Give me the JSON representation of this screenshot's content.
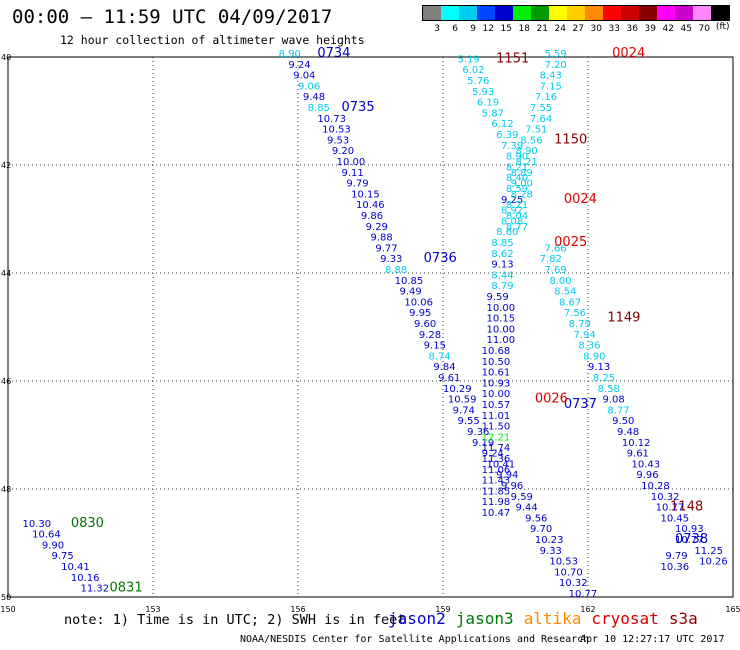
{
  "title": "00:00 – 11:59 UTC 04/09/2017",
  "subtitle": "12 hour collection of altimeter wave heights",
  "legend": {
    "unit": "(ft)",
    "colors": [
      "#808080",
      "#00ffff",
      "#00ccee",
      "#0044ff",
      "#0000cc",
      "#00ee00",
      "#009900",
      "#ffff00",
      "#ffcc00",
      "#ff8800",
      "#ff0000",
      "#cc0000",
      "#880000",
      "#ff00ff",
      "#cc00cc",
      "#ff88ff",
      "#000000"
    ],
    "labels": [
      "3",
      "6",
      "9",
      "12",
      "15",
      "18",
      "21",
      "24",
      "27",
      "30",
      "33",
      "36",
      "39",
      "42",
      "45",
      "70"
    ]
  },
  "axes": {
    "x_ticks": [
      "150",
      "153",
      "156",
      "159",
      "162",
      "165"
    ],
    "y_ticks": [
      "40",
      "42",
      "44",
      "46",
      "48",
      "50"
    ],
    "x_range": [
      150,
      165
    ],
    "y_range": [
      40,
      50
    ]
  },
  "footer": {
    "note": "note: 1) Time is in UTC; 2) SWH is in feet",
    "credit": "NOAA/NESDIS Center for Satellite Applications and Research",
    "stamp": "Apr 10 12:27:17 UTC 2017"
  },
  "satellites": [
    {
      "name": "jason2",
      "color": "#0000cc"
    },
    {
      "name": "jason3",
      "color": "#007700"
    },
    {
      "name": "altika",
      "color": "#ff8800"
    },
    {
      "name": "cryosat",
      "color": "#dd0000"
    },
    {
      "name": "s3a",
      "color": "#880000"
    }
  ],
  "chart_data": {
    "type": "scatter",
    "title": "",
    "xlabel": "",
    "ylabel": "",
    "grid": true,
    "tracks": [
      {
        "sat": "jason2",
        "pass_time": "0734",
        "time_pos": [
          156.4,
          40
        ],
        "points": [
          [
            155.6,
            40,
            "8.90",
            "#00ccee"
          ],
          [
            155.8,
            40.2,
            "9.24",
            "#0000cc"
          ],
          [
            155.9,
            40.4,
            "9.04",
            "#0000cc"
          ],
          [
            156.0,
            40.6,
            "9.06",
            "#00ccee"
          ],
          [
            156.1,
            40.8,
            "9.48",
            "#0000cc"
          ],
          [
            156.2,
            41.0,
            "8.85",
            "#00ccee"
          ],
          [
            156.4,
            41.2,
            "10.73",
            "#0000cc"
          ],
          [
            156.5,
            41.4,
            "10.53",
            "#0000cc"
          ],
          [
            156.6,
            41.6,
            "9.53",
            "#0000cc"
          ],
          [
            156.7,
            41.8,
            "9.20",
            "#0000cc"
          ],
          [
            156.8,
            42.0,
            "10.00",
            "#0000cc"
          ],
          [
            156.9,
            42.2,
            "9.11",
            "#0000cc"
          ],
          [
            157.0,
            42.4,
            "9.79",
            "#0000cc"
          ],
          [
            157.1,
            42.6,
            "10.15",
            "#0000cc"
          ],
          [
            157.2,
            42.8,
            "10.46",
            "#0000cc"
          ],
          [
            157.3,
            43.0,
            "9.86",
            "#0000cc"
          ],
          [
            157.4,
            43.2,
            "9.29",
            "#0000cc"
          ],
          [
            157.5,
            43.4,
            "9.88",
            "#0000cc"
          ],
          [
            157.6,
            43.6,
            "9.77",
            "#0000cc"
          ],
          [
            157.7,
            43.8,
            "9.33",
            "#0000cc"
          ],
          [
            157.8,
            44.0,
            "8.88",
            "#00ccee"
          ]
        ]
      },
      {
        "sat": "jason2",
        "pass_time": "0735",
        "time_pos": [
          156.9,
          41.0
        ],
        "points": []
      },
      {
        "sat": "jason2",
        "pass_time": "0736",
        "time_pos": [
          158.6,
          43.8
        ],
        "points": [
          [
            158.0,
            44.2,
            "10.85",
            "#0000cc"
          ],
          [
            158.1,
            44.4,
            "9.49",
            "#0000cc"
          ],
          [
            158.2,
            44.6,
            "10.06",
            "#0000cc"
          ],
          [
            158.3,
            44.8,
            "9.95",
            "#0000cc"
          ],
          [
            158.4,
            45.0,
            "9.60",
            "#0000cc"
          ],
          [
            158.5,
            45.2,
            "9.28",
            "#0000cc"
          ],
          [
            158.6,
            45.4,
            "9.15",
            "#0000cc"
          ],
          [
            158.7,
            45.6,
            "8.74",
            "#00ccee"
          ],
          [
            158.8,
            45.8,
            "9.84",
            "#0000cc"
          ],
          [
            158.9,
            46.0,
            "9.61",
            "#0000cc"
          ],
          [
            159.0,
            46.2,
            "10.29",
            "#0000cc"
          ],
          [
            159.1,
            46.4,
            "10.59",
            "#0000cc"
          ],
          [
            159.2,
            46.6,
            "9.74",
            "#0000cc"
          ],
          [
            159.3,
            46.8,
            "9.55",
            "#0000cc"
          ],
          [
            159.5,
            47.0,
            "9.36",
            "#0000cc"
          ],
          [
            159.6,
            47.2,
            "9.19",
            "#0000cc"
          ],
          [
            159.8,
            47.4,
            "9.24",
            "#0000cc"
          ],
          [
            159.9,
            47.6,
            "10.41",
            "#0000cc"
          ],
          [
            160.1,
            47.8,
            "9.94",
            "#0000cc"
          ],
          [
            160.2,
            48.0,
            "9.96",
            "#0000cc"
          ],
          [
            160.4,
            48.2,
            "9.59",
            "#0000cc"
          ],
          [
            160.5,
            48.4,
            "9.44",
            "#0000cc"
          ]
        ]
      },
      {
        "sat": "jason2",
        "pass_time": "0737",
        "time_pos": [
          161.5,
          46.5
        ],
        "points": []
      },
      {
        "sat": "jason2",
        "pass_time": "0738",
        "time_pos": [
          163.8,
          49.0
        ],
        "points": [
          [
            160.7,
            48.6,
            "9.56",
            "#0000cc"
          ],
          [
            160.8,
            48.8,
            "9.70",
            "#0000cc"
          ],
          [
            160.9,
            49.0,
            "10.23",
            "#0000cc"
          ],
          [
            161.0,
            49.2,
            "9.33",
            "#0000cc"
          ],
          [
            161.2,
            49.4,
            "10.53",
            "#0000cc"
          ],
          [
            161.3,
            49.6,
            "10.70",
            "#0000cc"
          ],
          [
            161.4,
            49.8,
            "10.32",
            "#0000cc"
          ],
          [
            161.6,
            50.0,
            "10.77",
            "#0000cc"
          ]
        ]
      },
      {
        "sat": "jason3",
        "pass_time": "0830",
        "time_pos": [
          151.3,
          48.7
        ],
        "points": [
          [
            150.3,
            48.7,
            "10.30",
            "#0000cc"
          ],
          [
            150.5,
            48.9,
            "10.64",
            "#0000cc"
          ],
          [
            150.7,
            49.1,
            "9.90",
            "#0000cc"
          ],
          [
            150.9,
            49.3,
            "9.75",
            "#0000cc"
          ],
          [
            151.1,
            49.5,
            "10.41",
            "#0000cc"
          ],
          [
            151.3,
            49.7,
            "10.16",
            "#0000cc"
          ],
          [
            151.5,
            49.9,
            "11.32",
            "#0000cc"
          ]
        ]
      },
      {
        "sat": "jason3",
        "pass_time": "0831",
        "time_pos": [
          152.1,
          49.9
        ],
        "points": []
      },
      {
        "sat": "s3a",
        "pass_time": "1151",
        "time_pos": [
          160.1,
          40.1
        ],
        "points": [
          [
            159.3,
            40.1,
            "5.19",
            "#00ccee"
          ],
          [
            159.4,
            40.3,
            "6.02",
            "#00ccee"
          ],
          [
            159.5,
            40.5,
            "5.76",
            "#00ccee"
          ],
          [
            159.6,
            40.7,
            "5.93",
            "#00ccee"
          ],
          [
            159.7,
            40.9,
            "6.19",
            "#00ccee"
          ],
          [
            159.8,
            41.1,
            "5.87",
            "#00ccee"
          ],
          [
            160.0,
            41.3,
            "6.12",
            "#00ccee"
          ],
          [
            160.1,
            41.5,
            "6.39",
            "#00ccee"
          ],
          [
            160.2,
            41.7,
            "7.39",
            "#00ccee"
          ],
          [
            160.3,
            41.9,
            "8.90",
            "#00ccee"
          ],
          [
            160.3,
            42.1,
            "8.21",
            "#00ccee"
          ],
          [
            160.3,
            42.3,
            "8.40",
            "#00ccee"
          ],
          [
            160.3,
            42.5,
            "8.59",
            "#00ccee"
          ],
          [
            160.2,
            42.7,
            "9.25",
            "#0000cc"
          ],
          [
            160.2,
            42.9,
            "8.92",
            "#00ccee"
          ],
          [
            160.2,
            43.1,
            "8.08",
            "#00ccee"
          ],
          [
            160.1,
            43.3,
            "8.60",
            "#00ccee"
          ],
          [
            160.0,
            43.5,
            "8.85",
            "#00ccee"
          ],
          [
            160.0,
            43.7,
            "8.62",
            "#00ccee"
          ],
          [
            160.0,
            43.9,
            "9.13",
            "#0000cc"
          ],
          [
            160.0,
            44.1,
            "8.44",
            "#00ccee"
          ],
          [
            160.0,
            44.3,
            "8.79",
            "#00ccee"
          ],
          [
            159.9,
            44.5,
            "9.59",
            "#0000cc"
          ],
          [
            159.9,
            44.7,
            "10.00",
            "#0000cc"
          ],
          [
            159.9,
            44.9,
            "10.15",
            "#0000cc"
          ],
          [
            159.9,
            45.1,
            "10.00",
            "#0000cc"
          ],
          [
            159.9,
            45.3,
            "11.00",
            "#0000cc"
          ],
          [
            159.8,
            45.5,
            "10.68",
            "#0000cc"
          ],
          [
            159.8,
            45.7,
            "10.50",
            "#0000cc"
          ],
          [
            159.8,
            45.9,
            "10.61",
            "#0000cc"
          ],
          [
            159.8,
            46.1,
            "10.93",
            "#0000cc"
          ],
          [
            159.8,
            46.3,
            "10.00",
            "#0000cc"
          ],
          [
            159.8,
            46.5,
            "10.57",
            "#0000cc"
          ],
          [
            159.8,
            46.7,
            "11.01",
            "#0000cc"
          ],
          [
            159.8,
            46.9,
            "11.50",
            "#0000cc"
          ],
          [
            159.8,
            47.1,
            "12.21",
            "#00ee00"
          ],
          [
            159.8,
            47.3,
            "11.74",
            "#0000cc"
          ],
          [
            159.8,
            47.5,
            "11.36",
            "#0000cc"
          ],
          [
            159.8,
            47.7,
            "11.06",
            "#0000cc"
          ],
          [
            159.8,
            47.9,
            "11.43",
            "#0000cc"
          ],
          [
            159.8,
            48.1,
            "11.85",
            "#0000cc"
          ],
          [
            159.8,
            48.3,
            "11.98",
            "#0000cc"
          ],
          [
            159.8,
            48.5,
            "10.47",
            "#0000cc"
          ]
        ]
      },
      {
        "sat": "s3a",
        "pass_time": "1150",
        "time_pos": [
          161.3,
          41.6
        ],
        "points": []
      },
      {
        "sat": "s3a",
        "pass_time": "1149",
        "time_pos": [
          162.4,
          44.9
        ],
        "points": []
      },
      {
        "sat": "s3a",
        "pass_time": "1148",
        "time_pos": [
          163.7,
          48.4
        ],
        "points": []
      },
      {
        "sat": "cryosat",
        "pass_time": "0024",
        "time_pos": [
          162.5,
          40.0
        ],
        "points": [
          [
            161.1,
            40.0,
            "5.59",
            "#00ccee"
          ],
          [
            161.1,
            40.2,
            "7.20",
            "#00ccee"
          ],
          [
            161.0,
            40.4,
            "8.43",
            "#00ccee"
          ],
          [
            161.0,
            40.6,
            "7.15",
            "#00ccee"
          ],
          [
            160.9,
            40.8,
            "7.16",
            "#00ccee"
          ],
          [
            160.8,
            41.0,
            "7.55",
            "#00ccee"
          ],
          [
            160.8,
            41.2,
            "7.64",
            "#00ccee"
          ],
          [
            160.7,
            41.4,
            "7.51",
            "#00ccee"
          ],
          [
            160.6,
            41.6,
            "8.56",
            "#00ccee"
          ],
          [
            160.5,
            41.8,
            "8.90",
            "#00ccee"
          ],
          [
            160.5,
            42.0,
            "8.21",
            "#00ccee"
          ],
          [
            160.4,
            42.2,
            "8.89",
            "#00ccee"
          ],
          [
            160.4,
            42.4,
            "9.00",
            "#00ccee"
          ],
          [
            160.4,
            42.6,
            "8.28",
            "#00ccee"
          ],
          [
            160.3,
            42.8,
            "8.21",
            "#00ccee"
          ],
          [
            160.3,
            43.0,
            "8.04",
            "#00ccee"
          ],
          [
            160.3,
            43.2,
            "8.77",
            "#00ccee"
          ]
        ]
      },
      {
        "sat": "cryosat",
        "pass_time": "0024",
        "time_pos": [
          161.5,
          42.7
        ],
        "points": []
      },
      {
        "sat": "cryosat",
        "pass_time": "0025",
        "time_pos": [
          161.3,
          43.5
        ],
        "points": [
          [
            161.1,
            43.6,
            "7.66",
            "#00ccee"
          ],
          [
            161.0,
            43.8,
            "7.82",
            "#00ccee"
          ],
          [
            161.1,
            44.0,
            "7.69",
            "#00ccee"
          ],
          [
            161.2,
            44.2,
            "8.00",
            "#00ccee"
          ],
          [
            161.3,
            44.4,
            "8.54",
            "#00ccee"
          ],
          [
            161.4,
            44.6,
            "8.67",
            "#00ccee"
          ],
          [
            161.5,
            44.8,
            "7.56",
            "#00ccee"
          ],
          [
            161.6,
            45.0,
            "8.79",
            "#00ccee"
          ],
          [
            161.7,
            45.2,
            "7.94",
            "#00ccee"
          ],
          [
            161.8,
            45.4,
            "8.36",
            "#00ccee"
          ],
          [
            161.9,
            45.6,
            "8.90",
            "#00ccee"
          ],
          [
            162.0,
            45.8,
            "9.13",
            "#0000cc"
          ],
          [
            162.1,
            46.0,
            "8.25",
            "#00ccee"
          ],
          [
            162.2,
            46.2,
            "8.58",
            "#00ccee"
          ],
          [
            162.3,
            46.4,
            "9.08",
            "#0000cc"
          ],
          [
            162.4,
            46.6,
            "8.77",
            "#00ccee"
          ],
          [
            162.5,
            46.8,
            "9.50",
            "#0000cc"
          ],
          [
            162.6,
            47.0,
            "9.48",
            "#0000cc"
          ],
          [
            162.7,
            47.2,
            "10.12",
            "#0000cc"
          ],
          [
            162.8,
            47.4,
            "9.61",
            "#0000cc"
          ],
          [
            162.9,
            47.6,
            "10.43",
            "#0000cc"
          ],
          [
            163.0,
            47.8,
            "9.96",
            "#0000cc"
          ],
          [
            163.1,
            48.0,
            "10.28",
            "#0000cc"
          ],
          [
            163.3,
            48.2,
            "10.32",
            "#0000cc"
          ],
          [
            163.4,
            48.4,
            "10.77",
            "#0000cc"
          ],
          [
            163.5,
            48.6,
            "10.45",
            "#0000cc"
          ],
          [
            163.8,
            48.8,
            "10.93",
            "#0000cc"
          ],
          [
            163.8,
            49.0,
            "10.77",
            "#0000cc"
          ],
          [
            164.2,
            49.2,
            "11.25",
            "#0000cc"
          ],
          [
            164.3,
            49.4,
            "10.26",
            "#0000cc"
          ],
          [
            163.6,
            49.3,
            "9.79",
            "#0000cc"
          ],
          [
            163.5,
            49.5,
            "10.36",
            "#0000cc"
          ]
        ]
      },
      {
        "sat": "cryosat",
        "pass_time": "0026",
        "time_pos": [
          160.9,
          46.4
        ],
        "points": []
      }
    ]
  }
}
